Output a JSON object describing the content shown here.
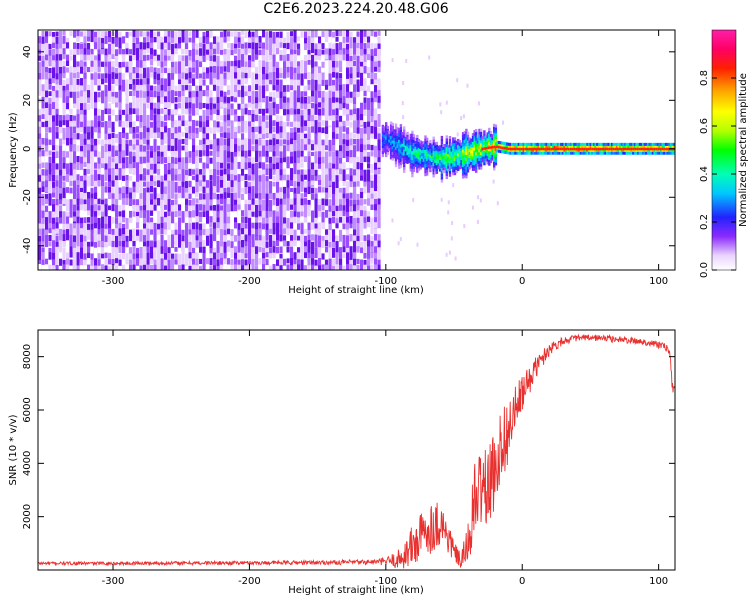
{
  "title": "C2E6.2023.224.20.48.G06",
  "chart_data": [
    {
      "type": "heatmap",
      "xlabel": "Height of straight line (km)",
      "ylabel": "Frequency (Hz)",
      "xlim": [
        -355,
        112
      ],
      "ylim": [
        -50,
        49
      ],
      "xticks": [
        -300,
        -200,
        -100,
        0,
        100
      ],
      "yticks": [
        -40,
        -20,
        0,
        20,
        40
      ],
      "signal_trace": {
        "x": [
          -100,
          -90,
          -80,
          -70,
          -60,
          -50,
          -40,
          -30,
          -20,
          -10,
          0,
          20,
          40,
          60,
          80,
          100,
          112
        ],
        "frequency": [
          4,
          1,
          -2,
          -3,
          -4,
          -3,
          -2,
          0,
          1,
          0,
          0,
          0,
          0,
          0,
          0,
          0,
          0
        ],
        "amplitude": [
          0.3,
          0.4,
          0.45,
          0.5,
          0.55,
          0.6,
          0.7,
          0.75,
          0.85,
          0.85,
          0.95,
          0.95,
          0.95,
          0.9,
          0.9,
          0.85,
          0.8
        ]
      },
      "noise_region_x": [
        -355,
        -105
      ],
      "colorbar": {
        "label": "Normalized spectral amplitude",
        "ticks": [
          0.0,
          0.2,
          0.4,
          0.6,
          0.8
        ],
        "range": [
          0,
          1
        ],
        "colormap": "gist_ncar"
      }
    },
    {
      "type": "line",
      "xlabel": "Height of straight line (km)",
      "ylabel": "SNR (10 * v/v)",
      "xlim": [
        -355,
        112
      ],
      "ylim": [
        0,
        9000
      ],
      "xticks": [
        -300,
        -200,
        -100,
        0,
        100
      ],
      "yticks": [
        2000,
        4000,
        6000,
        8000
      ],
      "series": [
        {
          "color": "#e8312f",
          "x": [
            -355,
            -300,
            -250,
            -200,
            -150,
            -110,
            -100,
            -90,
            -80,
            -70,
            -60,
            -55,
            -50,
            -45,
            -40,
            -35,
            -30,
            -25,
            -20,
            -15,
            -10,
            -5,
            0,
            10,
            20,
            30,
            40,
            50,
            60,
            70,
            80,
            90,
            100,
            105,
            108,
            110,
            112
          ],
          "values": [
            250,
            250,
            260,
            270,
            280,
            300,
            320,
            400,
            900,
            1500,
            1800,
            1300,
            700,
            300,
            900,
            2500,
            3200,
            3000,
            3800,
            4800,
            5200,
            6000,
            6600,
            7600,
            8300,
            8600,
            8700,
            8700,
            8700,
            8650,
            8600,
            8550,
            8450,
            8350,
            8200,
            6900,
            6800
          ],
          "noise_amplitude": [
            60,
            60,
            70,
            70,
            80,
            100,
            150,
            400,
            900,
            1000,
            900,
            700,
            400,
            300,
            800,
            1500,
            1600,
            1500,
            1500,
            1400,
            1200,
            900,
            700,
            400,
            250,
            150,
            120,
            120,
            120,
            120,
            120,
            120,
            150,
            150,
            150,
            250,
            250
          ]
        }
      ]
    }
  ]
}
